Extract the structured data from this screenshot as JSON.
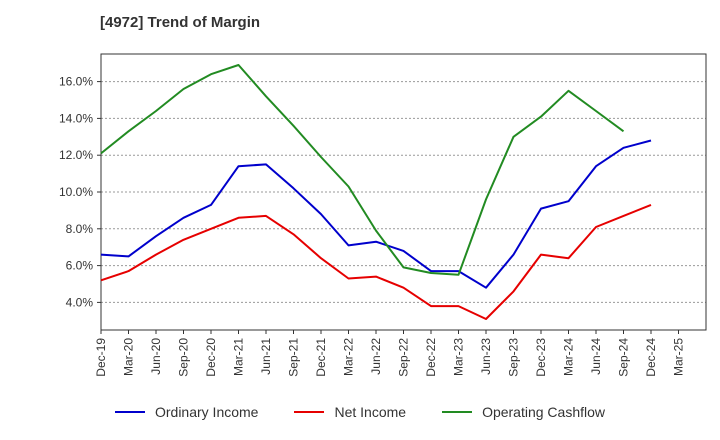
{
  "title": "[4972]  Trend of Margin",
  "chart_data": {
    "type": "line",
    "title": "[4972]  Trend of Margin",
    "xlabel": "",
    "ylabel": "",
    "categories": [
      "Dec-19",
      "Mar-20",
      "Jun-20",
      "Sep-20",
      "Dec-20",
      "Mar-21",
      "Jun-21",
      "Sep-21",
      "Dec-21",
      "Mar-22",
      "Jun-22",
      "Sep-22",
      "Dec-22",
      "Mar-23",
      "Jun-23",
      "Sep-23",
      "Dec-23",
      "Mar-24",
      "Jun-24",
      "Sep-24",
      "Dec-24",
      "Mar-25"
    ],
    "ylim": [
      2.5,
      17.5
    ],
    "yticks": [
      4.0,
      6.0,
      8.0,
      10.0,
      12.0,
      14.0,
      16.0
    ],
    "ytick_labels": [
      "4.0%",
      "6.0%",
      "8.0%",
      "10.0%",
      "12.0%",
      "14.0%",
      "16.0%"
    ],
    "grid": true,
    "legend_position": "bottom",
    "series": [
      {
        "name": "Ordinary Income",
        "color": "#0000cc",
        "values": [
          6.6,
          6.5,
          7.6,
          8.6,
          9.3,
          11.4,
          11.5,
          10.2,
          8.8,
          7.1,
          7.3,
          6.8,
          5.7,
          5.7,
          4.8,
          6.6,
          9.1,
          9.5,
          11.4,
          12.4,
          12.8,
          null
        ]
      },
      {
        "name": "Net Income",
        "color": "#e60000",
        "values": [
          5.2,
          5.7,
          6.6,
          7.4,
          8.0,
          8.6,
          8.7,
          7.7,
          6.4,
          5.3,
          5.4,
          4.8,
          3.8,
          3.8,
          3.1,
          4.6,
          6.6,
          6.4,
          8.1,
          8.7,
          9.3,
          null
        ]
      },
      {
        "name": "Operating Cashflow",
        "color": "#228b22",
        "values": [
          12.1,
          13.3,
          14.4,
          15.6,
          16.4,
          16.9,
          15.2,
          13.6,
          11.9,
          10.3,
          7.9,
          5.9,
          5.6,
          5.5,
          9.6,
          13.0,
          14.1,
          15.5,
          14.4,
          13.3,
          null,
          null
        ]
      }
    ]
  }
}
